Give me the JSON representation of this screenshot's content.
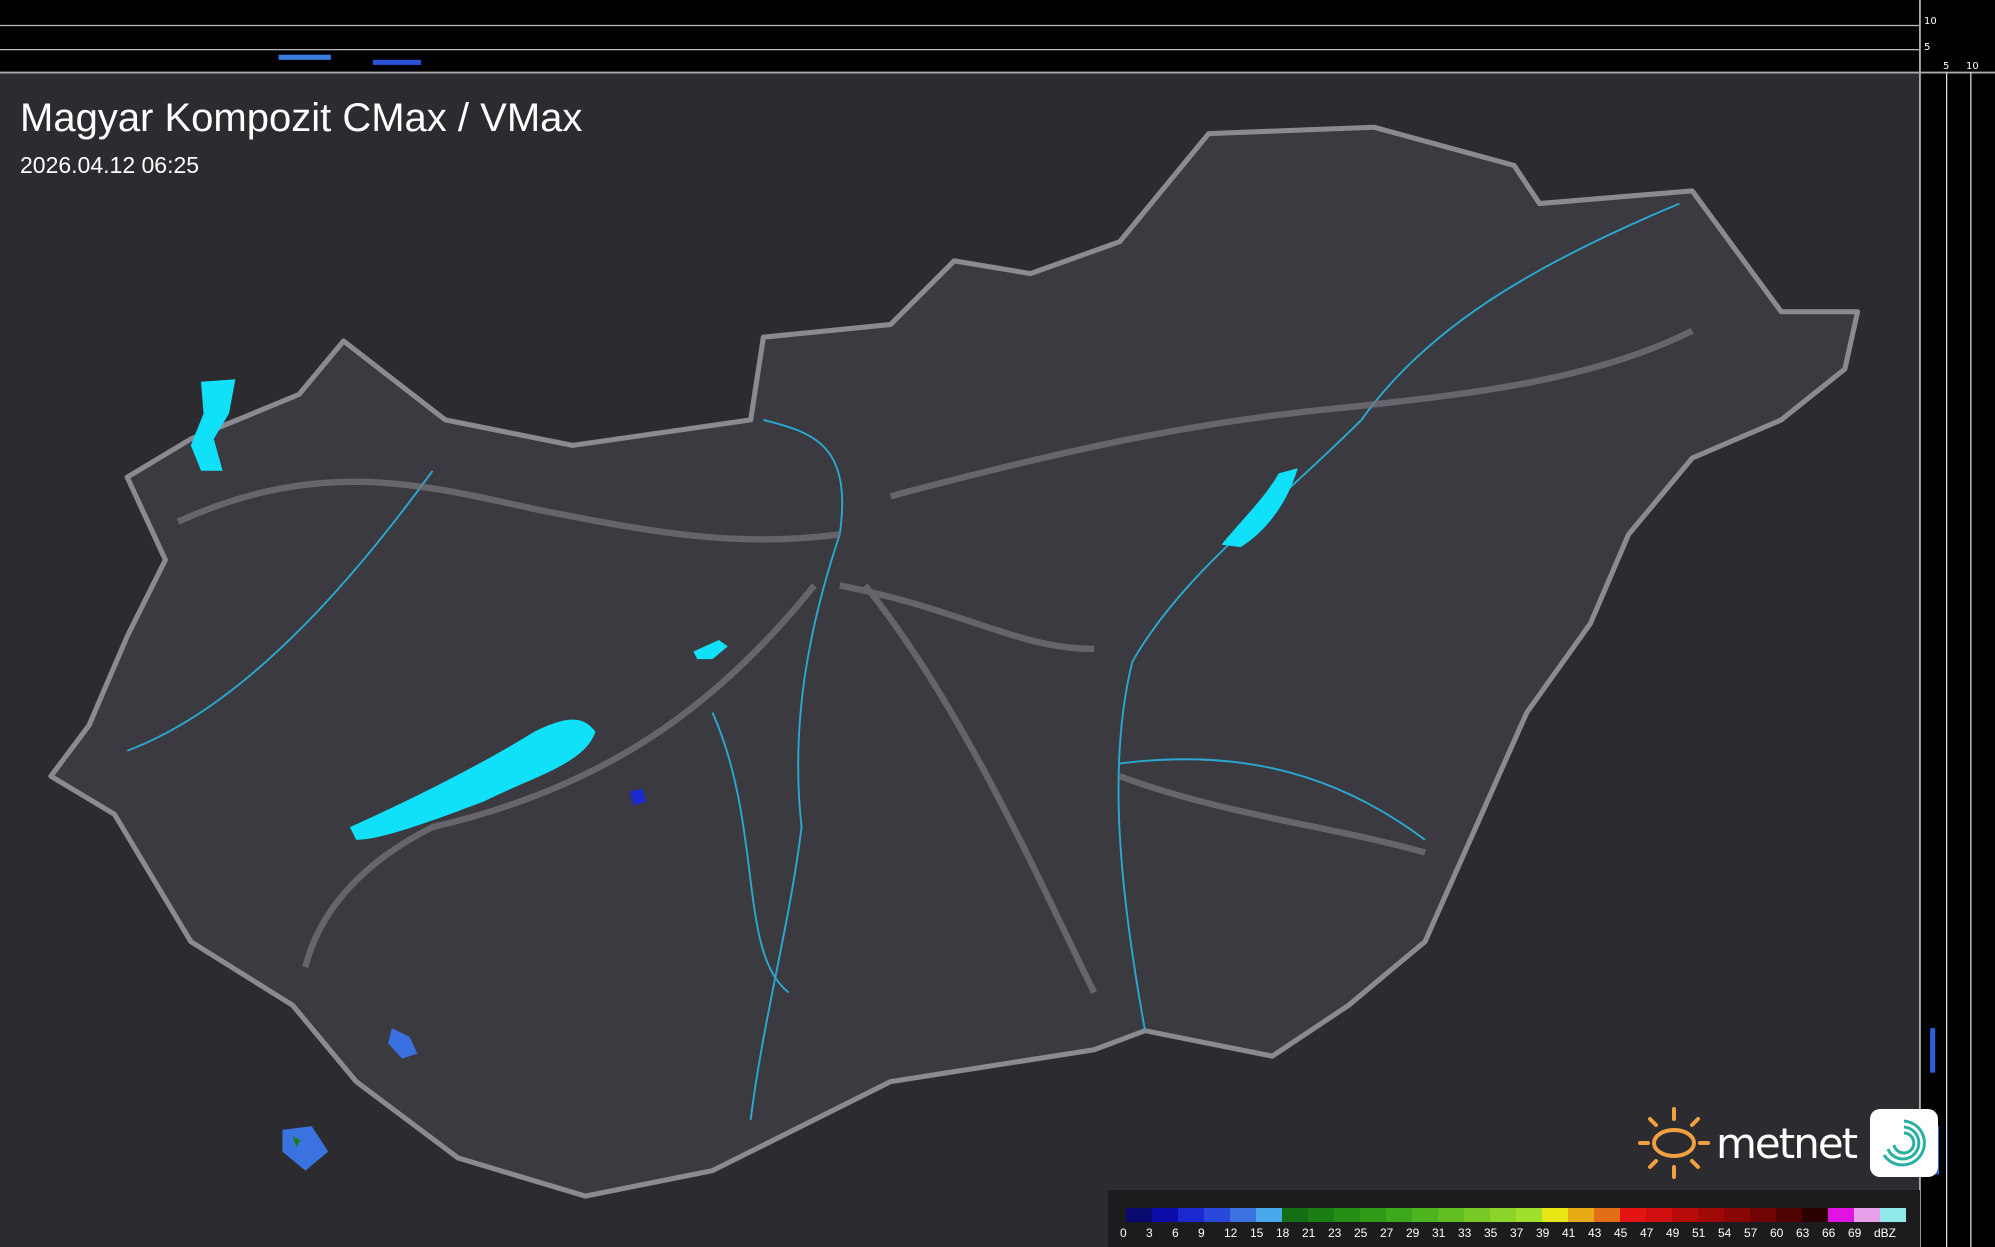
{
  "header": {
    "title": "Magyar Kompozit CMax / VMax",
    "timestamp": "2026.04.12 06:25"
  },
  "profile_axes": {
    "top_labels": [
      "10",
      "5"
    ],
    "right_labels": [
      "5",
      "10"
    ]
  },
  "legend": {
    "unit": "dBZ",
    "ticks": [
      "0",
      "3",
      "6",
      "9",
      "12",
      "15",
      "18",
      "21",
      "23",
      "25",
      "27",
      "29",
      "31",
      "33",
      "35",
      "37",
      "39",
      "41",
      "43",
      "45",
      "47",
      "49",
      "51",
      "54",
      "57",
      "60",
      "63",
      "66",
      "69"
    ],
    "colors": [
      "#0a0a6e",
      "#0c0ca8",
      "#1a2ad0",
      "#2a48dc",
      "#3a72e0",
      "#48a8ec",
      "#146e14",
      "#1a7e14",
      "#248e16",
      "#2e9a18",
      "#3ca81c",
      "#4cb41e",
      "#60be22",
      "#78c826",
      "#8cd42a",
      "#a0e02c",
      "#e6e614",
      "#e8aa14",
      "#e46e18",
      "#e41414",
      "#d01010",
      "#b80c0c",
      "#a00808",
      "#8a0606",
      "#700404",
      "#500202",
      "#2a0000",
      "#e014e0",
      "#e8a0e8",
      "#90e8e8"
    ]
  },
  "branding": {
    "logo_text": "metnet",
    "logo_accent": "#f0a040",
    "app_icon_color": "#2ab0a0"
  },
  "colors": {
    "background": "#2e2e32",
    "country_fill": "#3a3a40",
    "border": "#8a8a90",
    "rivers": "#2aa8d0",
    "lakes": "#10e0f8"
  }
}
